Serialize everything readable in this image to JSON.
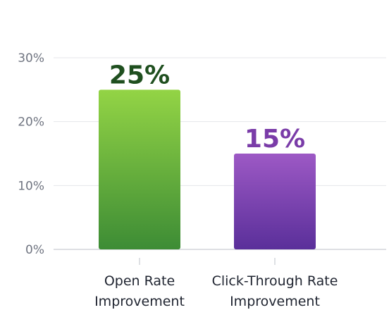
{
  "chart_data": {
    "type": "bar",
    "categories": [
      [
        "Open Rate",
        "Improvement"
      ],
      [
        "Click-Through Rate",
        "Improvement"
      ]
    ],
    "values": [
      25,
      15
    ],
    "value_labels": [
      "25%",
      "15%"
    ],
    "y_ticks": [
      "0%",
      "10%",
      "20%",
      "30%"
    ],
    "y_tick_values": [
      0,
      10,
      20,
      30
    ],
    "ylim": [
      0,
      30
    ],
    "title": "",
    "xlabel": "",
    "ylabel": "",
    "grid": true,
    "colors": {
      "bar_1_top": "#93d445",
      "bar_1_bottom": "#3d8c35",
      "label_1": "#1f4f1f",
      "bar_2_top": "#9d59c5",
      "bar_2_bottom": "#5a2f9a",
      "label_2": "#7a3ca8"
    }
  }
}
